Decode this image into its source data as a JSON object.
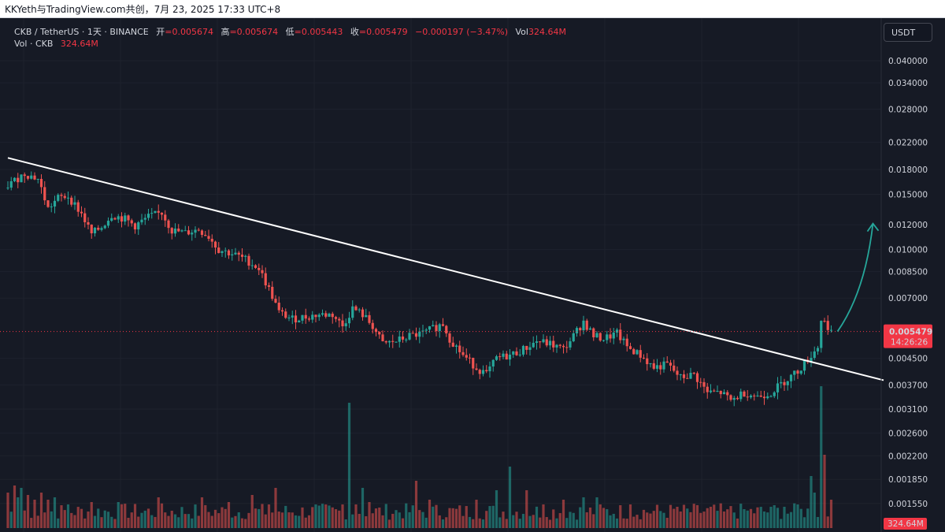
{
  "topbar": {
    "title": "KKYeth与TradingView.com共创，7月 23, 2025 17:33 UTC+8"
  },
  "legend": {
    "symbol": "CKB / TetherUS · 1天 · BINANCE",
    "open_label": "开",
    "open": "=0.005674",
    "high_label": "高",
    "high": "=0.005674",
    "low_label": "低",
    "low": "=0.005443",
    "close_label": "收",
    "close": "=0.005479",
    "change": "−0.000197 (−3.47%)",
    "vol_label": "Vol",
    "vol": "324.64M",
    "vol_row_label": "Vol · CKB",
    "vol_row_value": "324.64M"
  },
  "currency_button": "USDT",
  "colors": {
    "background": "#131722",
    "up": "#26a69a",
    "down": "#ef5350",
    "trendline": "#ffffff",
    "arrow": "#26a69a",
    "price_tag": "#f23645"
  },
  "chart_data": {
    "type": "candlestick",
    "symbol": "CKB / TetherUS",
    "interval": "1天",
    "exchange": "BINANCE",
    "y_scale": "log",
    "y_ticks": [
      "0.040000",
      "0.034000",
      "0.028000",
      "0.022000",
      "0.018000",
      "0.015000",
      "0.012000",
      "0.010000",
      "0.008500",
      "0.007000",
      "0.004500",
      "0.003700",
      "0.003100",
      "0.002600",
      "0.002200",
      "0.001850",
      "0.001550"
    ],
    "last_price": "0.005479",
    "countdown": "14:26:26",
    "volume_last": "324.64M",
    "anchors": [
      [
        0,
        0.016
      ],
      [
        5,
        0.0175
      ],
      [
        9,
        0.0168
      ],
      [
        12,
        0.0135
      ],
      [
        15,
        0.0146
      ],
      [
        18,
        0.0148
      ],
      [
        22,
        0.013
      ],
      [
        25,
        0.0112
      ],
      [
        28,
        0.0118
      ],
      [
        31,
        0.0129
      ],
      [
        35,
        0.0125
      ],
      [
        38,
        0.0119
      ],
      [
        42,
        0.0127
      ],
      [
        46,
        0.0131
      ],
      [
        49,
        0.0115
      ],
      [
        53,
        0.0113
      ],
      [
        57,
        0.0116
      ],
      [
        60,
        0.011
      ],
      [
        63,
        0.01
      ],
      [
        67,
        0.0097
      ],
      [
        71,
        0.0093
      ],
      [
        75,
        0.0087
      ],
      [
        79,
        0.0071
      ],
      [
        81,
        0.0063
      ],
      [
        85,
        0.006
      ],
      [
        89,
        0.0061
      ],
      [
        93,
        0.0062
      ],
      [
        97,
        0.0062
      ],
      [
        100,
        0.0057
      ],
      [
        103,
        0.0065
      ],
      [
        106,
        0.0062
      ],
      [
        109,
        0.0057
      ],
      [
        112,
        0.005
      ],
      [
        116,
        0.0051
      ],
      [
        120,
        0.0053
      ],
      [
        124,
        0.0054
      ],
      [
        127,
        0.0056
      ],
      [
        130,
        0.0058
      ],
      [
        132,
        0.0052
      ],
      [
        136,
        0.0046
      ],
      [
        140,
        0.0042
      ],
      [
        143,
        0.004
      ],
      [
        146,
        0.0045
      ],
      [
        150,
        0.0046
      ],
      [
        154,
        0.0048
      ],
      [
        158,
        0.0051
      ],
      [
        162,
        0.005
      ],
      [
        166,
        0.0048
      ],
      [
        169,
        0.0053
      ],
      [
        172,
        0.0059
      ],
      [
        175,
        0.0053
      ],
      [
        178,
        0.0052
      ],
      [
        182,
        0.0054
      ],
      [
        185,
        0.0049
      ],
      [
        189,
        0.0046
      ],
      [
        193,
        0.0042
      ],
      [
        197,
        0.0043
      ],
      [
        201,
        0.0039
      ],
      [
        205,
        0.004
      ],
      [
        209,
        0.0035
      ],
      [
        213,
        0.0035
      ],
      [
        216,
        0.0033
      ],
      [
        220,
        0.0035
      ],
      [
        224,
        0.0034
      ],
      [
        228,
        0.0035
      ],
      [
        232,
        0.0038
      ],
      [
        236,
        0.0041
      ],
      [
        240,
        0.0046
      ],
      [
        242,
        0.0049
      ],
      [
        243,
        0.006
      ],
      [
        245,
        0.0057
      ],
      [
        246,
        0.0055
      ]
    ],
    "volumes": [
      [
        0,
        1.5
      ],
      [
        2,
        1.8
      ],
      [
        3,
        1.3
      ],
      [
        4,
        1.7
      ],
      [
        6,
        1.4
      ],
      [
        8,
        1.2
      ],
      [
        10,
        1.5
      ],
      [
        12,
        1.2
      ],
      [
        14,
        1.3
      ],
      [
        18,
        1.0
      ],
      [
        25,
        1.1
      ],
      [
        33,
        1.1
      ],
      [
        45,
        1.3
      ],
      [
        58,
        1.3
      ],
      [
        66,
        1.1
      ],
      [
        73,
        1.4
      ],
      [
        78,
        1.0
      ],
      [
        80,
        1.7
      ],
      [
        92,
        1.0
      ],
      [
        100,
        1.0
      ],
      [
        102,
        5.3
      ],
      [
        104,
        1.0
      ],
      [
        106,
        1.7
      ],
      [
        108,
        1.1
      ],
      [
        122,
        2.0
      ],
      [
        126,
        1.2
      ],
      [
        140,
        1.2
      ],
      [
        146,
        1.6
      ],
      [
        150,
        2.6
      ],
      [
        155,
        1.6
      ],
      [
        160,
        1.0
      ],
      [
        166,
        1.2
      ],
      [
        172,
        1.3
      ],
      [
        176,
        1.3
      ],
      [
        186,
        1.0
      ],
      [
        200,
        0.9
      ],
      [
        214,
        0.7
      ],
      [
        220,
        0.8
      ],
      [
        228,
        0.9
      ],
      [
        232,
        0.9
      ],
      [
        236,
        1.0
      ],
      [
        240,
        2.2
      ],
      [
        241,
        1.5
      ],
      [
        243,
        6.0
      ],
      [
        244,
        3.1
      ],
      [
        246,
        1.2
      ]
    ]
  }
}
